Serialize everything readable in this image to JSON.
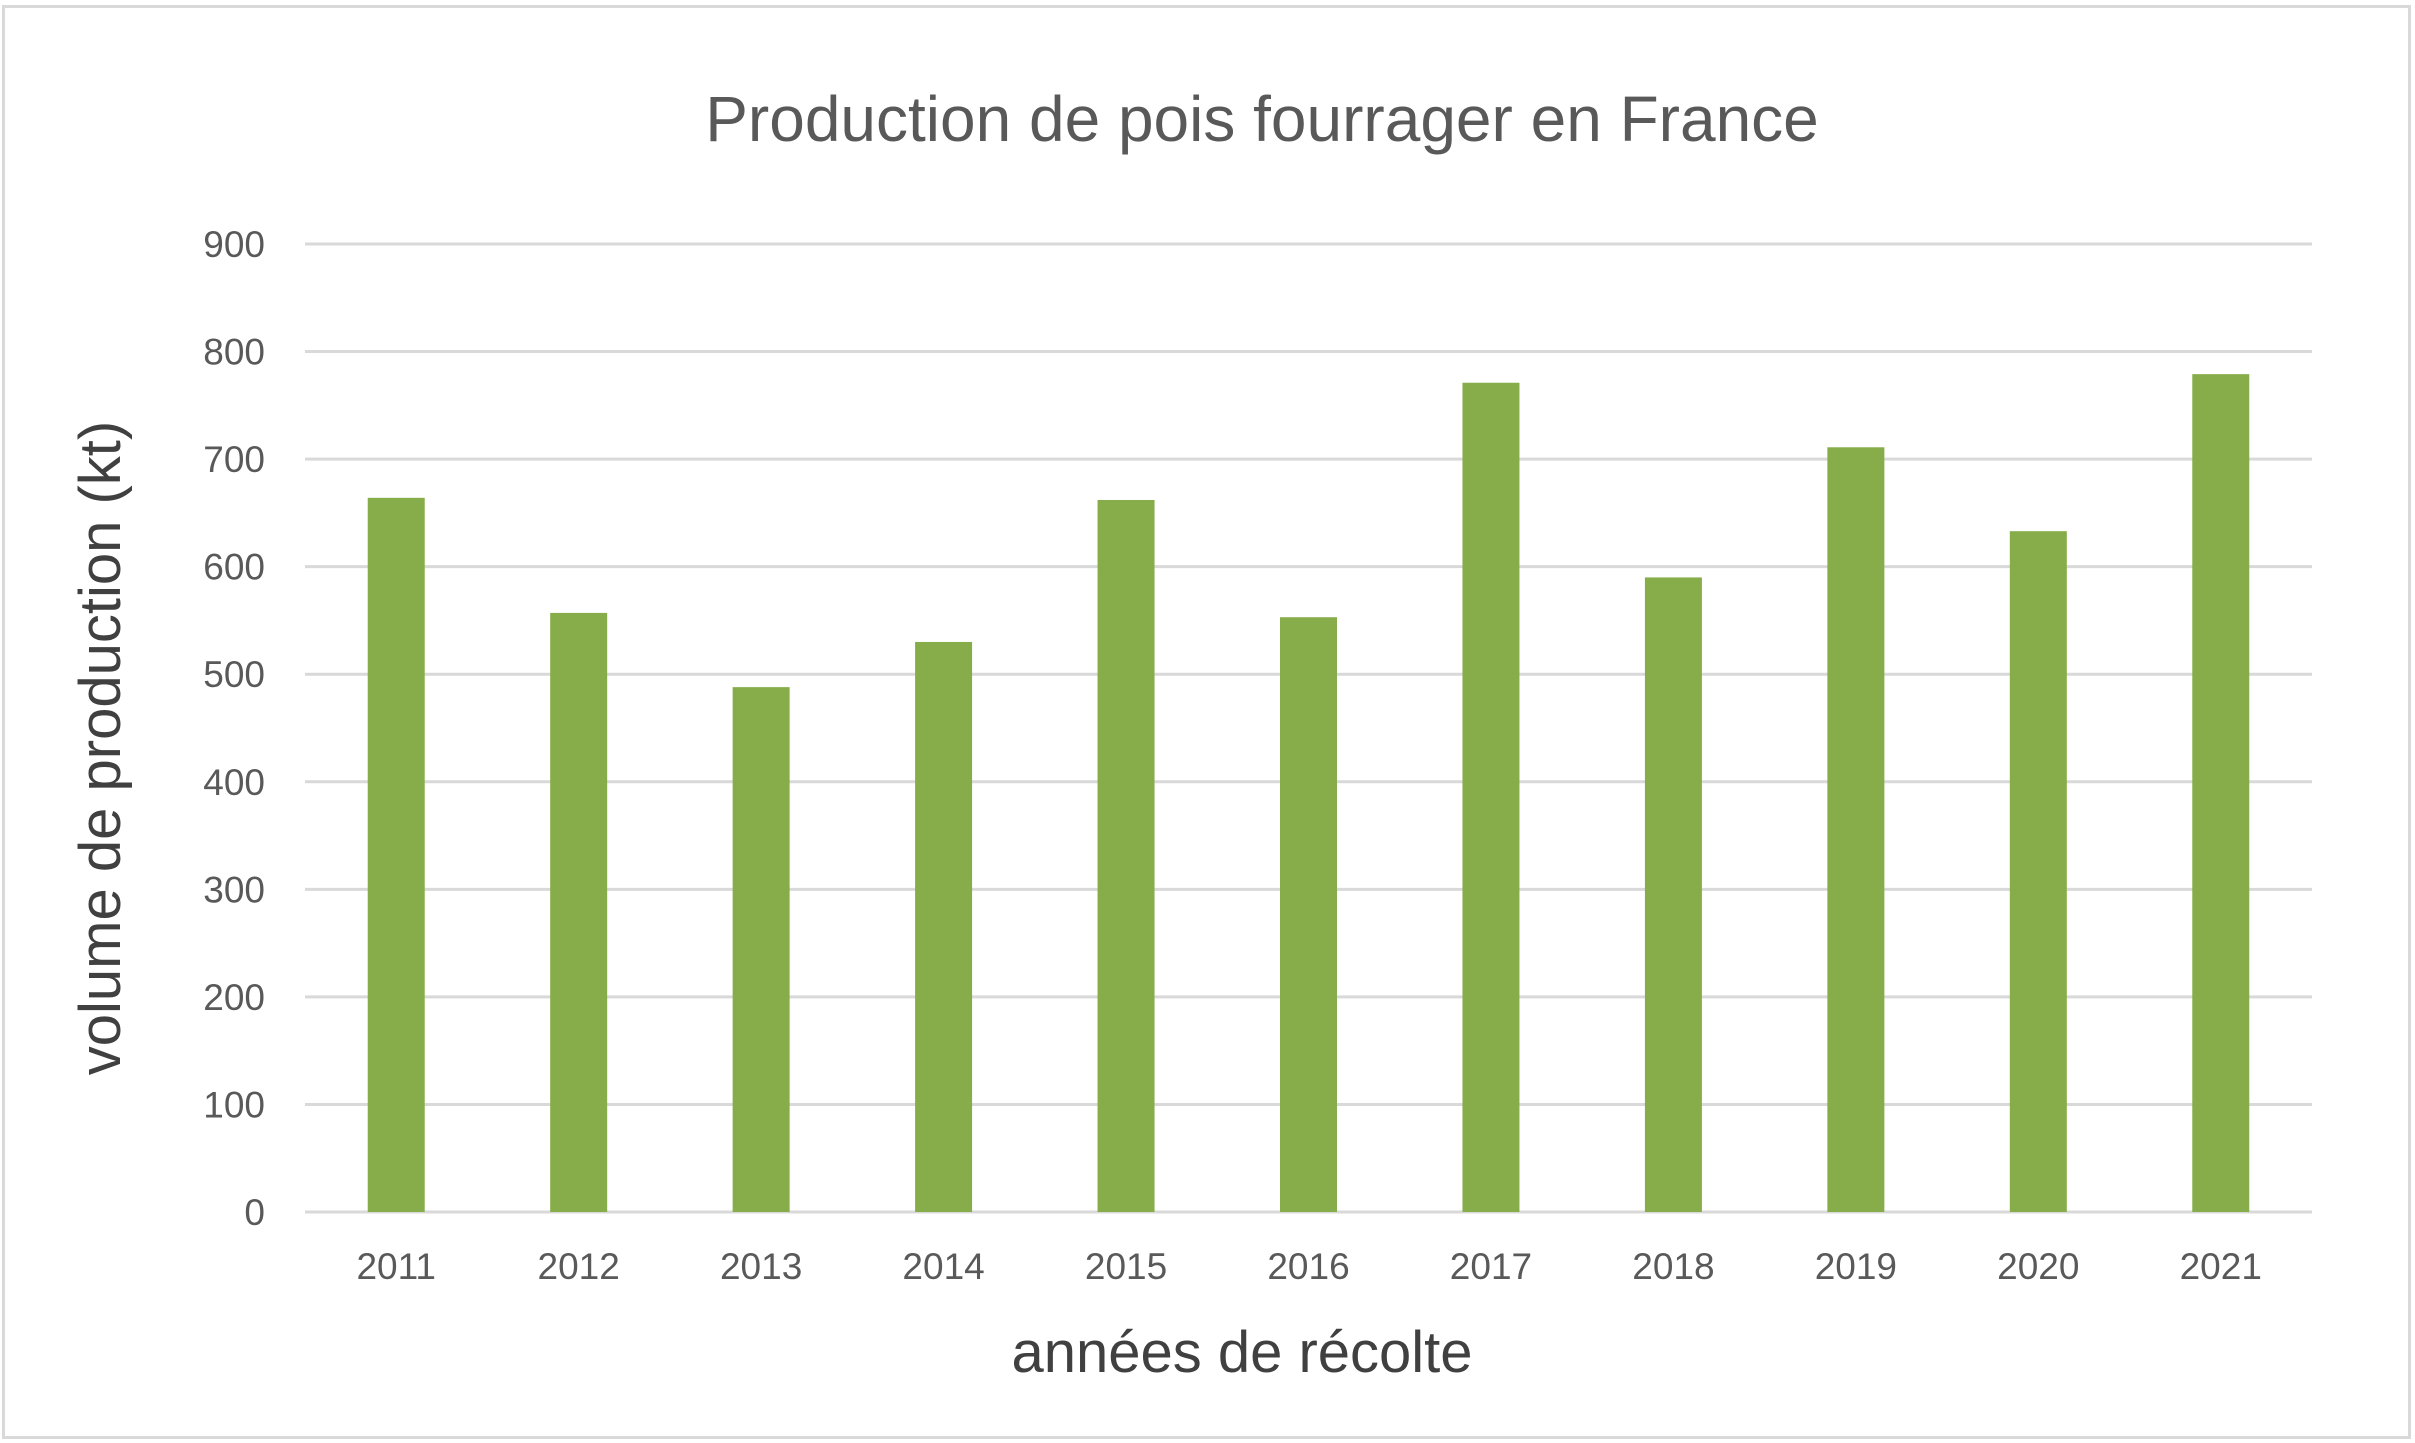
{
  "chart_data": {
    "type": "bar",
    "title": "Production de pois fourrager en France",
    "xlabel": "années de récolte",
    "ylabel": "volume de production (kt)",
    "categories": [
      "2011",
      "2012",
      "2013",
      "2014",
      "2015",
      "2016",
      "2017",
      "2018",
      "2019",
      "2020",
      "2021"
    ],
    "values": [
      664,
      557,
      488,
      530,
      662,
      553,
      771,
      590,
      711,
      633,
      779
    ],
    "ylim": [
      0,
      900
    ],
    "yticks": [
      0,
      100,
      200,
      300,
      400,
      500,
      600,
      700,
      800,
      900
    ],
    "grid": true,
    "legend": "none",
    "bar_color": "#86ad4a",
    "grid_color": "#d9d9d9"
  }
}
